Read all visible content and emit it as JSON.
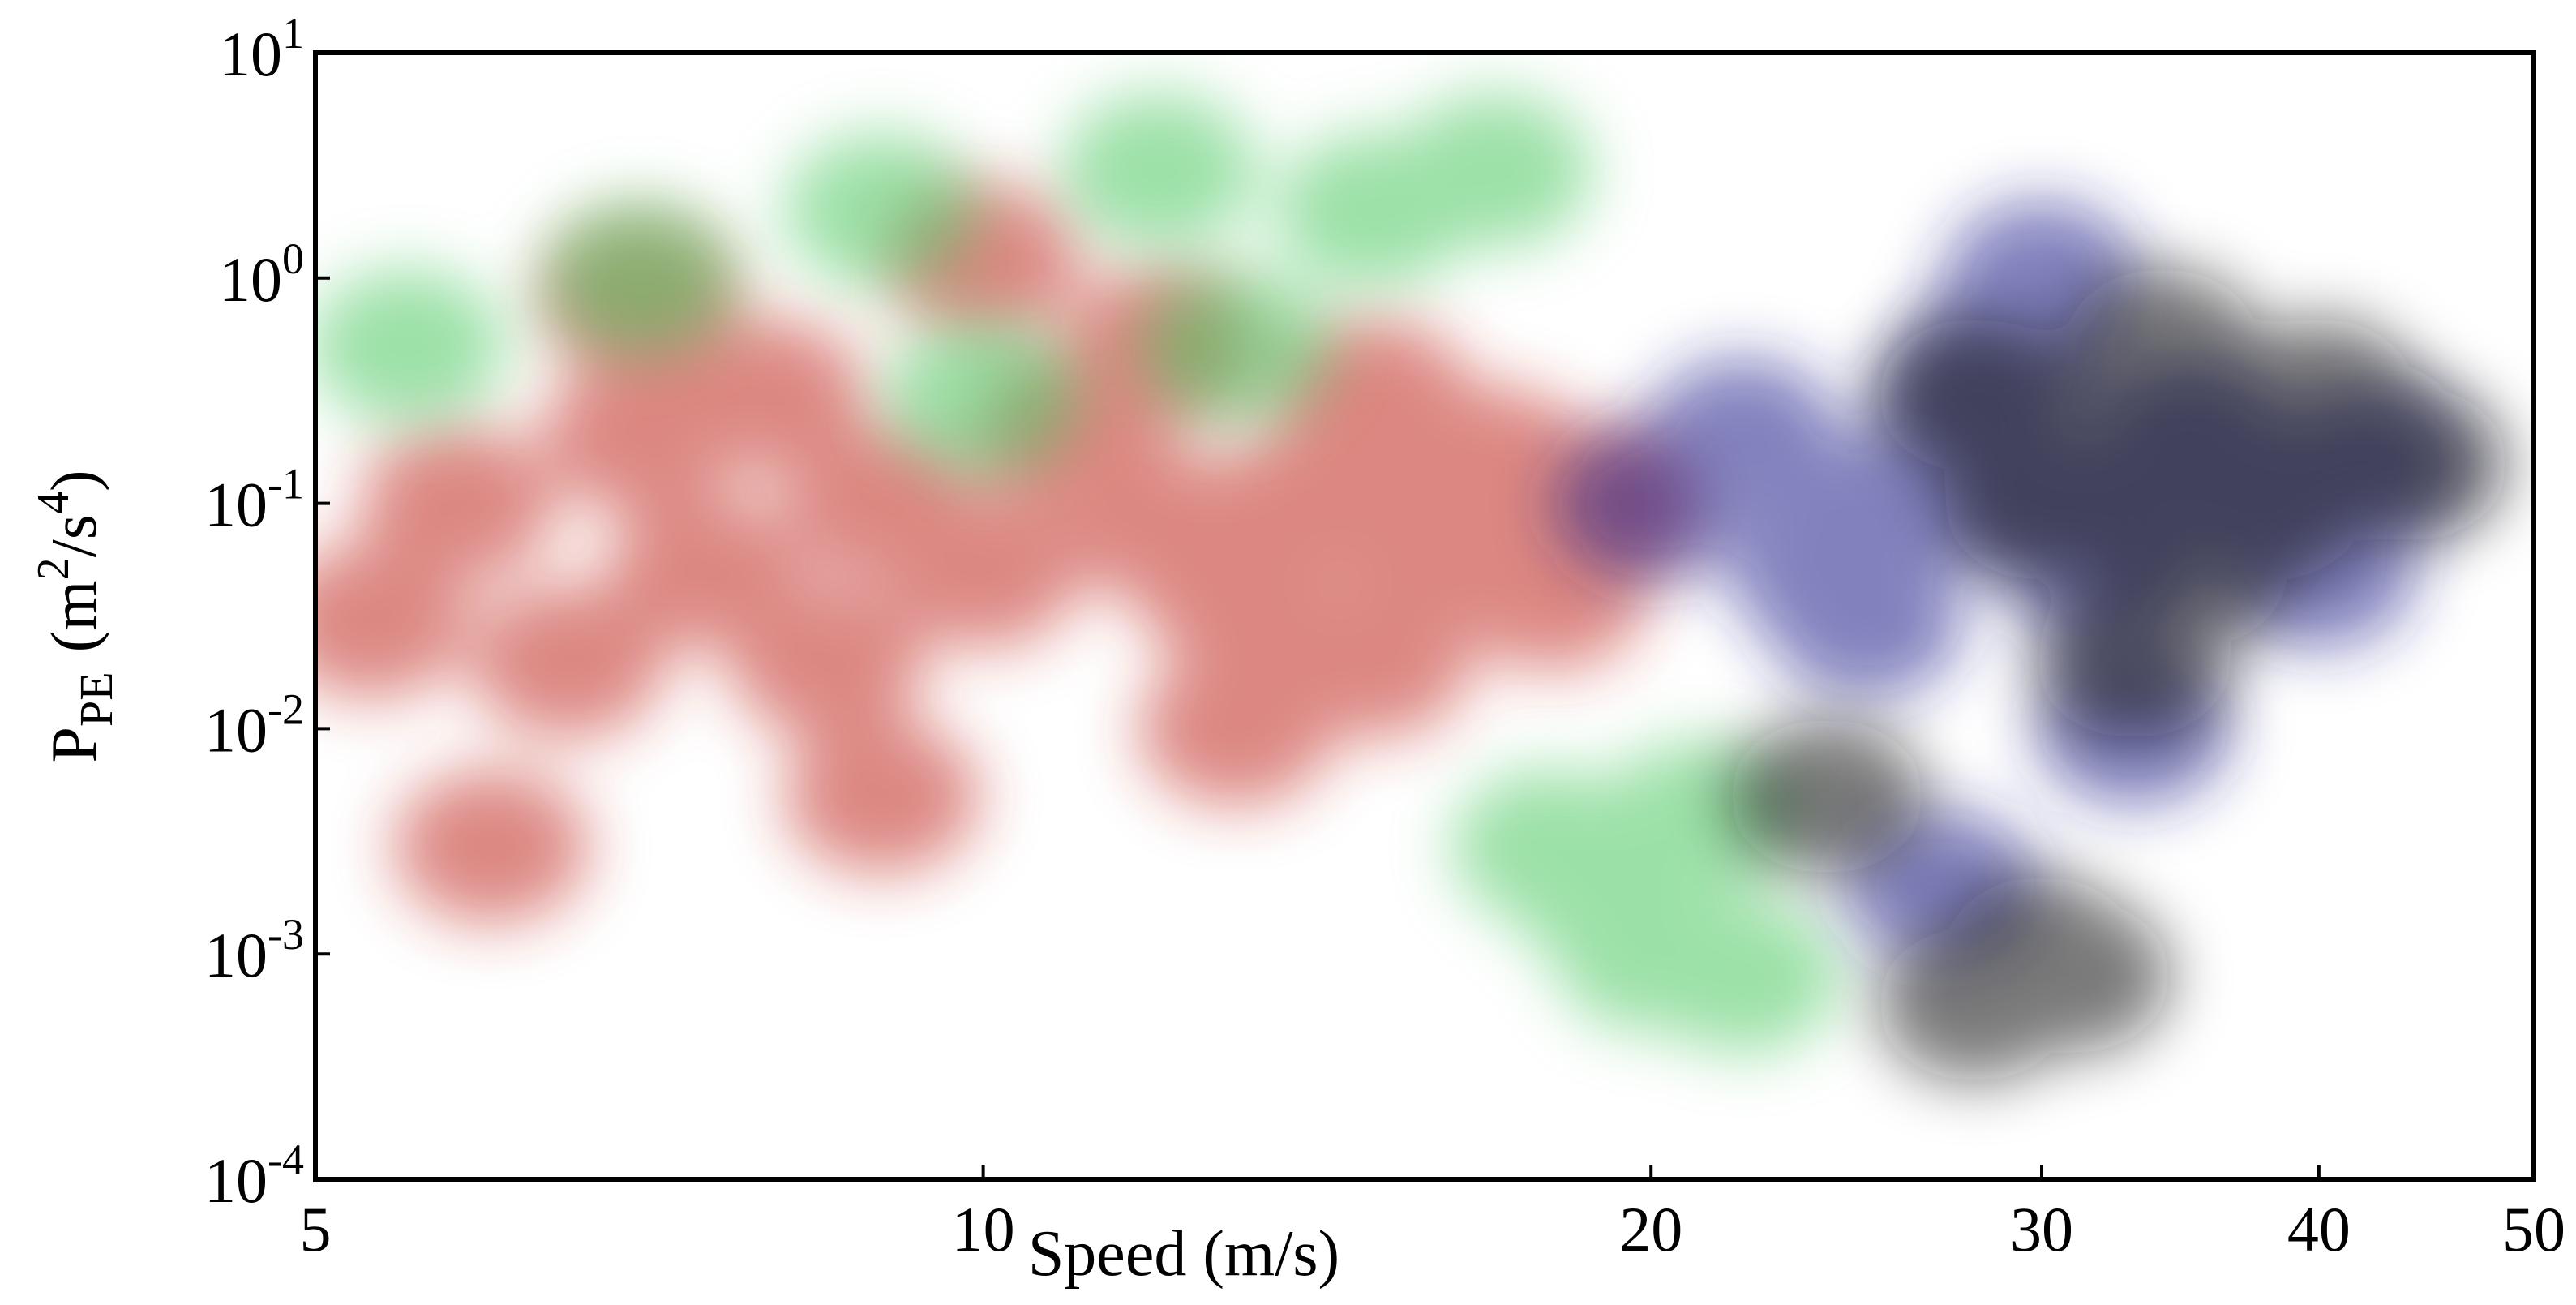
{
  "chart_data": {
    "type": "scatter",
    "x_label": "Speed (m/s)",
    "y_label": {
      "main": "P",
      "sub": "PE",
      "open": "(m",
      "sup1": "2",
      "mid": "/s",
      "sup2": "4",
      "close": ")"
    },
    "xscale": "log",
    "yscale": "log",
    "xlim": [
      5,
      50
    ],
    "ylim": [
      0.0001,
      10
    ],
    "xticks": [
      5,
      10,
      20,
      30,
      40,
      50
    ],
    "yticks": [
      {
        "value": 0.0001,
        "label": {
          "base": "10",
          "exp": "-4"
        }
      },
      {
        "value": 0.001,
        "label": {
          "base": "10",
          "exp": "-3"
        }
      },
      {
        "value": 0.01,
        "label": {
          "base": "10",
          "exp": "-2"
        }
      },
      {
        "value": 0.1,
        "label": {
          "base": "10",
          "exp": "-1"
        }
      },
      {
        "value": 1,
        "label": {
          "base": "10",
          "exp": "0"
        }
      },
      {
        "value": 10,
        "label": {
          "base": "10",
          "exp": "1"
        }
      }
    ],
    "grid": false,
    "series": [
      {
        "color": "#c0281a",
        "x": [
          5.3,
          5.8,
          6.5,
          7,
          7.5,
          8,
          8.5,
          9,
          10,
          11,
          12,
          13,
          14,
          15,
          16,
          17,
          18,
          19,
          6,
          9,
          12,
          15,
          7,
          10,
          13
        ],
        "values": [
          0.03,
          0.1,
          0.02,
          0.2,
          0.05,
          0.3,
          0.02,
          0.1,
          0.05,
          0.2,
          0.08,
          0.04,
          0.1,
          0.3,
          0.06,
          0.15,
          0.04,
          0.1,
          0.003,
          0.005,
          0.5,
          0.02,
          0.8,
          1.2,
          0.01
        ]
      },
      {
        "color": "#4cc860",
        "x": [
          5.5,
          7,
          9,
          12,
          15,
          18,
          19,
          20,
          21,
          22,
          17,
          10,
          13
        ],
        "values": [
          0.5,
          1,
          2,
          3,
          2,
          0.003,
          0.002,
          0.001,
          0.004,
          0.0008,
          3,
          0.3,
          0.5
        ]
      },
      {
        "color": "#1a1a8a",
        "x": [
          20,
          22,
          24,
          26,
          28,
          30,
          32,
          35,
          38,
          40,
          42,
          25,
          30,
          27,
          33,
          29
        ],
        "values": [
          0.1,
          0.2,
          0.05,
          0.1,
          0.3,
          0.1,
          0.05,
          0.2,
          0.1,
          0.05,
          0.15,
          0.03,
          1,
          0.002,
          0.01,
          0.5
        ]
      },
      {
        "color": "#111111",
        "x": [
          28,
          30,
          32,
          34,
          36,
          38,
          40,
          42,
          44,
          35,
          33,
          30,
          28,
          31,
          24
        ],
        "values": [
          0.3,
          0.1,
          0.2,
          0.5,
          0.2,
          0.1,
          0.3,
          0.2,
          0.15,
          0.05,
          0.02,
          0.001,
          0.0006,
          0.0008,
          0.005
        ]
      }
    ]
  }
}
